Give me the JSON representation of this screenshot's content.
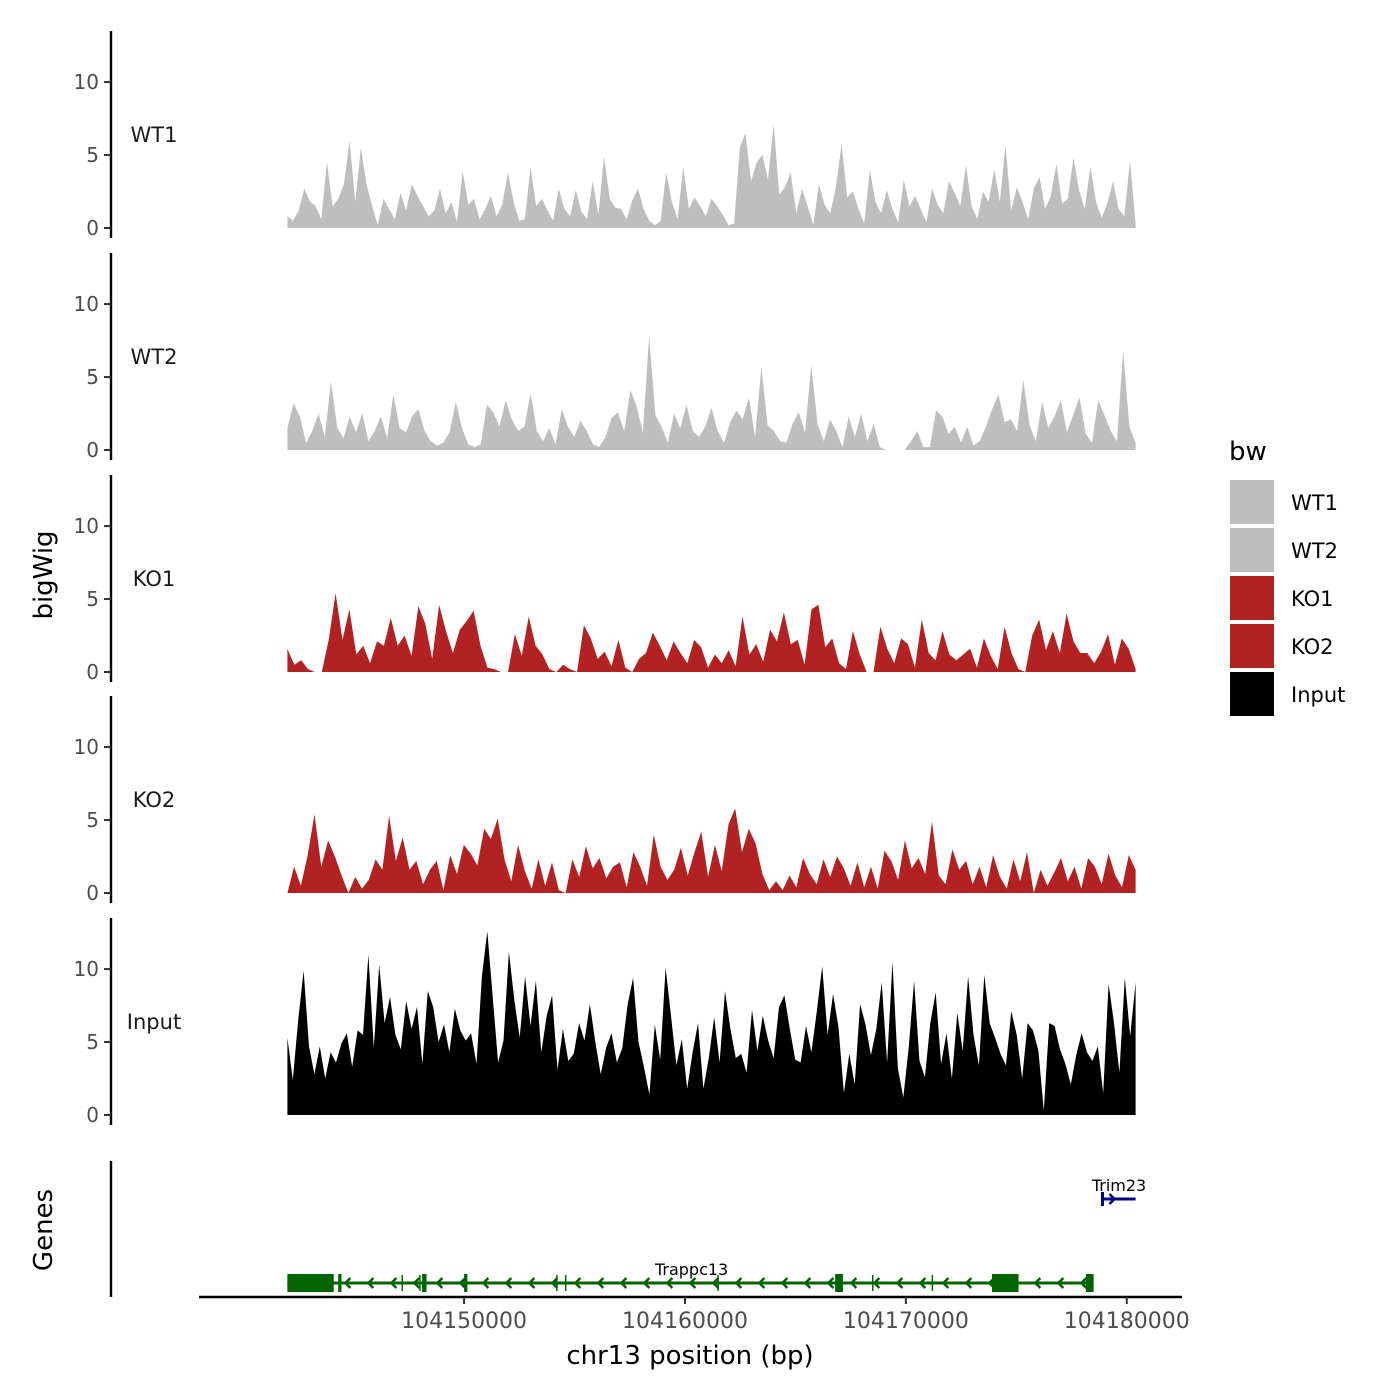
{
  "chart_data": {
    "type": "area",
    "chromosome": "chr13",
    "xlabel": "chr13 position (bp)",
    "ylabel": "bigWig",
    "genes_axis_label": "Genes",
    "xlim": [
      104138000,
      104182500
    ],
    "ylim": [
      0,
      13.5
    ],
    "x_ticks": [
      104150000,
      104160000,
      104170000,
      104180000
    ],
    "x_tick_labels": [
      "104150000",
      "104160000",
      "104170000",
      "104180000"
    ],
    "y_ticks": [
      0,
      5,
      10
    ],
    "y_tick_labels": [
      "0",
      "5",
      "10"
    ],
    "legend": {
      "title": "bw",
      "entries": [
        {
          "label": "WT1",
          "color": "#bebebe"
        },
        {
          "label": "WT2",
          "color": "#bebebe"
        },
        {
          "label": "KO1",
          "color": "#b22222"
        },
        {
          "label": "KO2",
          "color": "#b22222"
        },
        {
          "label": "Input",
          "color": "#000000"
        }
      ]
    },
    "series": [
      {
        "name": "WT1",
        "color": "#bebebe",
        "x_start": 104142000,
        "x_end": 104180400,
        "values": [
          0.8,
          0.5,
          1.2,
          2.7,
          1.8,
          1.5,
          0.6,
          4.5,
          1.5,
          2,
          3,
          6,
          1.8,
          5.5,
          3,
          1.5,
          0.2,
          2,
          1.3,
          0.6,
          2.4,
          1.2,
          3,
          2.2,
          1.5,
          0.8,
          1.2,
          2.7,
          1,
          1.8,
          0.4,
          3.9,
          1.6,
          2,
          0.6,
          1.3,
          2.2,
          0.8,
          1.6,
          3.8,
          1.8,
          0.5,
          0.6,
          4.2,
          1.5,
          2,
          1.2,
          0.5,
          2.7,
          1.3,
          0.8,
          2.6,
          1.1,
          0.6,
          3.2,
          0.9,
          4.9,
          2,
          1.4,
          1.3,
          0.6,
          1.9,
          2.7,
          1.3,
          0.5,
          0.2,
          0.5,
          3.8,
          1.8,
          0.6,
          4.2,
          1.3,
          2.1,
          1.5,
          0.8,
          2,
          1.5,
          0.9,
          0.2,
          0.3,
          5.5,
          6.5,
          3.2,
          4.5,
          5,
          3.3,
          7.1,
          2.3,
          2.8,
          3.8,
          1,
          2.7,
          1.5,
          0.2,
          3,
          1.6,
          1,
          2.8,
          5.8,
          2.1,
          2.5,
          1.3,
          0.3,
          4,
          1.8,
          1,
          2.6,
          1.3,
          0.4,
          3.3,
          1.5,
          2.2,
          1.3,
          0.4,
          2.7,
          1.6,
          1,
          3.2,
          2.4,
          1.5,
          4.3,
          1.5,
          0.6,
          2.5,
          1.8,
          4,
          1.8,
          5.7,
          1.2,
          2.8,
          1.8,
          0.6,
          2.7,
          3.5,
          1.3,
          2.2,
          4.4,
          1.7,
          2,
          4.8,
          2.6,
          1.3,
          4.2,
          1.8,
          0.7,
          1.7,
          3.2,
          1.3,
          0.8,
          4.6,
          0.3
        ]
      },
      {
        "name": "WT2",
        "color": "#bebebe",
        "x_start": 104142000,
        "x_end": 104180400,
        "values": [
          1.5,
          3.2,
          2.3,
          0.5,
          1.3,
          2.5,
          0.9,
          4.7,
          1.5,
          0.8,
          2.3,
          1.2,
          2.5,
          0.6,
          1.3,
          2.3,
          0.8,
          3.8,
          1.5,
          1.2,
          2.3,
          2.8,
          1.3,
          0.6,
          0.3,
          0.5,
          1.2,
          3.3,
          1.5,
          0.4,
          0.2,
          0.4,
          3.1,
          2.6,
          1.6,
          3.4,
          2.1,
          1.3,
          1.6,
          3.9,
          1.3,
          0.6,
          1.5,
          0.4,
          2.8,
          1.6,
          0.9,
          2,
          1.3,
          0.4,
          0.2,
          0.9,
          2.2,
          2.6,
          1.3,
          4.1,
          3,
          1.2,
          7.8,
          2.4,
          1.6,
          0.5,
          2.5,
          1.5,
          3.1,
          1.3,
          0.9,
          1.6,
          2.9,
          1.3,
          0.5,
          1.9,
          2.7,
          2.1,
          3.6,
          0.9,
          5.7,
          1.7,
          1.3,
          0.6,
          0.5,
          1.8,
          2.6,
          1.2,
          5.8,
          1.8,
          0.6,
          2.1,
          1.3,
          0.2,
          2.3,
          0.9,
          2.5,
          0.6,
          1.8,
          0.2,
          0,
          0,
          0,
          0,
          0.6,
          1.3,
          0.2,
          0.2,
          2.7,
          2.3,
          1.1,
          1.6,
          0.5,
          1.6,
          0.3,
          0.6,
          1.6,
          2.8,
          3.8,
          1.9,
          2.1,
          1.3,
          4.8,
          1.7,
          0.6,
          3.3,
          1.5,
          2.3,
          3.4,
          1.2,
          2.4,
          3.6,
          1.1,
          0.5,
          3.4,
          2.4,
          1.3,
          0.6,
          6.8,
          1.6,
          0.5
        ]
      },
      {
        "name": "KO1",
        "color": "#b22222",
        "x_start": 104142000,
        "x_end": 104180400,
        "values": [
          1.6,
          0.5,
          0.8,
          0.2,
          0,
          0,
          2.2,
          5.4,
          2.2,
          4.3,
          1.2,
          1.8,
          0.6,
          2.1,
          1.8,
          3.7,
          1.8,
          2.5,
          1.1,
          4.5,
          3.3,
          0.9,
          4.6,
          2.8,
          1.3,
          2.9,
          3.5,
          4.2,
          1.8,
          0.3,
          0.2,
          0,
          0,
          2.6,
          1.1,
          3.8,
          1.8,
          1.2,
          0.2,
          0,
          0.5,
          0.2,
          0,
          3.2,
          2.3,
          0.9,
          1.4,
          0.4,
          2.2,
          0.3,
          0,
          0.9,
          1.3,
          2.7,
          1.8,
          0.8,
          2.1,
          1.3,
          0.6,
          2.2,
          1.7,
          0.3,
          1.2,
          0.6,
          1.5,
          0.4,
          3.8,
          1.2,
          1.9,
          0.7,
          2.9,
          2.1,
          4.1,
          1.9,
          2.2,
          0.5,
          4.3,
          4.6,
          1.7,
          2.3,
          0.6,
          0.2,
          2.8,
          1.2,
          0,
          0,
          3.1,
          1.6,
          0.6,
          2.3,
          1.9,
          0.3,
          3.6,
          1.3,
          0.8,
          2.8,
          1.2,
          0.8,
          1.2,
          1.6,
          0.3,
          2.3,
          1.1,
          0.2,
          3.1,
          1.3,
          0.2,
          0,
          2.5,
          3.6,
          1.5,
          2.8,
          1.3,
          4,
          2.1,
          1.3,
          1.3,
          0.6,
          1.4,
          2.6,
          0.5,
          2.3,
          1.6,
          0.2
        ]
      },
      {
        "name": "KO2",
        "color": "#b22222",
        "x_start": 104142000,
        "x_end": 104180400,
        "values": [
          0,
          1.8,
          0.5,
          2.6,
          5.4,
          1.8,
          3.6,
          2.5,
          1.2,
          0,
          1.1,
          0.3,
          0.9,
          2.3,
          1.6,
          5.3,
          2.2,
          3.8,
          1.6,
          2.2,
          0.6,
          1.6,
          2.2,
          0.2,
          2.6,
          1.3,
          3.3,
          2.7,
          1.9,
          4.4,
          3.7,
          5.1,
          2.3,
          0.8,
          3.3,
          1.5,
          0.3,
          2.3,
          0.5,
          2.1,
          0.2,
          0,
          2.3,
          1.1,
          3.2,
          1.7,
          2.4,
          1,
          1.8,
          2.1,
          0.4,
          2.8,
          1.8,
          0.5,
          4,
          1.8,
          0.9,
          1.6,
          3.1,
          1.2,
          2.8,
          4.2,
          1.1,
          3.3,
          1.5,
          4.7,
          5.8,
          2.8,
          4.4,
          3.4,
          1.3,
          0.2,
          0.8,
          0.2,
          1.2,
          0.4,
          2.4,
          1.3,
          0.6,
          2.3,
          1.1,
          2.5,
          1.7,
          0.5,
          2.1,
          0.4,
          1.8,
          0.3,
          2.9,
          2.2,
          0.9,
          3.6,
          1.7,
          2.4,
          1.3,
          4.9,
          1.2,
          0.6,
          3,
          1.6,
          2.2,
          0.6,
          1.8,
          0.4,
          2.6,
          1.1,
          0.3,
          2.3,
          0.8,
          2.8,
          0,
          1.6,
          0.5,
          1.4,
          2.4,
          0.8,
          1.8,
          0.3,
          2.4,
          1.8,
          0.6,
          2.7,
          1.2,
          0.4,
          2.6,
          1.6
        ]
      },
      {
        "name": "Input",
        "color": "#000000",
        "x_start": 104142000,
        "x_end": 104180400,
        "values": [
          5.3,
          2.4,
          6.5,
          9.9,
          4.7,
          2.8,
          4.7,
          2.5,
          4.3,
          3.6,
          4.9,
          5.6,
          3.3,
          5.8,
          5.5,
          11,
          4.6,
          10.3,
          6.3,
          8.1,
          5.5,
          4.5,
          7.8,
          5.9,
          7.4,
          3.5,
          8.5,
          7.4,
          5,
          6.2,
          4.3,
          7.3,
          5.8,
          5.1,
          5.6,
          3.5,
          9.5,
          12.6,
          8.1,
          3.6,
          5.1,
          11.2,
          7.9,
          5.3,
          9.5,
          6.1,
          9.2,
          4.3,
          6.8,
          8.2,
          3.1,
          5.9,
          3.7,
          4.2,
          6.3,
          5.1,
          7.6,
          5,
          2.8,
          4.6,
          5.6,
          3.6,
          4.6,
          7.6,
          9.4,
          5,
          3.3,
          1.4,
          6.2,
          3.8,
          10.1,
          6.8,
          3.4,
          5.2,
          1.8,
          4.3,
          6.3,
          1.8,
          3.9,
          6.7,
          3.6,
          8.5,
          5.9,
          3.9,
          4.2,
          2.9,
          7.2,
          4.4,
          6.8,
          5.1,
          3.9,
          7.4,
          8.2,
          5.9,
          3.8,
          3.6,
          6.1,
          4.3,
          7.1,
          10.2,
          5.5,
          8.3,
          6,
          1.5,
          4.2,
          2.1,
          7.6,
          6.2,
          4.1,
          5.9,
          9.1,
          3.6,
          10.5,
          3.2,
          1.2,
          4.6,
          9.2,
          3.7,
          2.6,
          6.3,
          8.4,
          3.5,
          5.6,
          2.5,
          7,
          4.4,
          9.5,
          5.5,
          3.4,
          9.6,
          6.3,
          5.3,
          4.2,
          3.4,
          7.1,
          5.5,
          2.5,
          6.3,
          5.8,
          4.4,
          0.3,
          6.3,
          6.1,
          4.5,
          3.5,
          2.1,
          4.1,
          5.6,
          4.3,
          3.7,
          4.7,
          1.5,
          9,
          6.3,
          2.9,
          9.4,
          5.4,
          9.1
        ]
      }
    ],
    "genes": [
      {
        "name": "Trappc13",
        "color": "#006400",
        "strand": "-",
        "start": 104142000,
        "end": 104178500,
        "exons": [
          [
            104142000,
            104144100
          ],
          [
            104144300,
            104144450
          ],
          [
            104148100,
            104148300
          ],
          [
            104150000,
            104150150
          ],
          [
            104166800,
            104167150
          ],
          [
            104173900,
            104175100
          ],
          [
            104178150,
            104178500
          ]
        ],
        "minor_ticks": [
          104147200,
          104148000,
          104154200,
          104154600,
          104161500,
          104168500,
          104171200
        ]
      },
      {
        "name": "Trim23",
        "color": "#00008b",
        "strand": "+",
        "start": 104178900,
        "end": 104180400,
        "exons": []
      }
    ]
  }
}
